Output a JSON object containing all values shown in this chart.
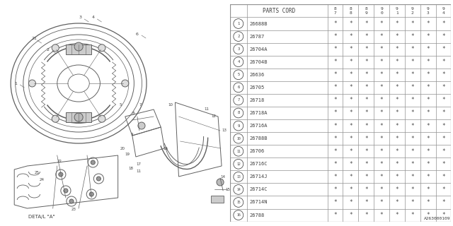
{
  "bg_color": "#ffffff",
  "table_header_col0": "PARTS CORD",
  "year_cols": [
    "8\n7",
    "8\n8",
    "8\n9",
    "9\n0",
    "9\n1",
    "9\n2",
    "9\n3",
    "9\n4"
  ],
  "rows": [
    [
      1,
      "26688B"
    ],
    [
      2,
      "26787"
    ],
    [
      3,
      "26704A"
    ],
    [
      4,
      "26704B"
    ],
    [
      5,
      "26636"
    ],
    [
      6,
      "26705"
    ],
    [
      7,
      "26718"
    ],
    [
      8,
      "26718A"
    ],
    [
      9,
      "26716A"
    ],
    [
      10,
      "26788B"
    ],
    [
      11,
      "26706"
    ],
    [
      12,
      "26716C"
    ],
    [
      13,
      "26714J"
    ],
    [
      14,
      "26714C"
    ],
    [
      15,
      "26714N"
    ],
    [
      16,
      "26788"
    ]
  ],
  "footer_code": "A263000109",
  "detail_label": "DETA/L \"A\"",
  "lc": "#606060",
  "tc": "#404040",
  "lc2": "#909090"
}
